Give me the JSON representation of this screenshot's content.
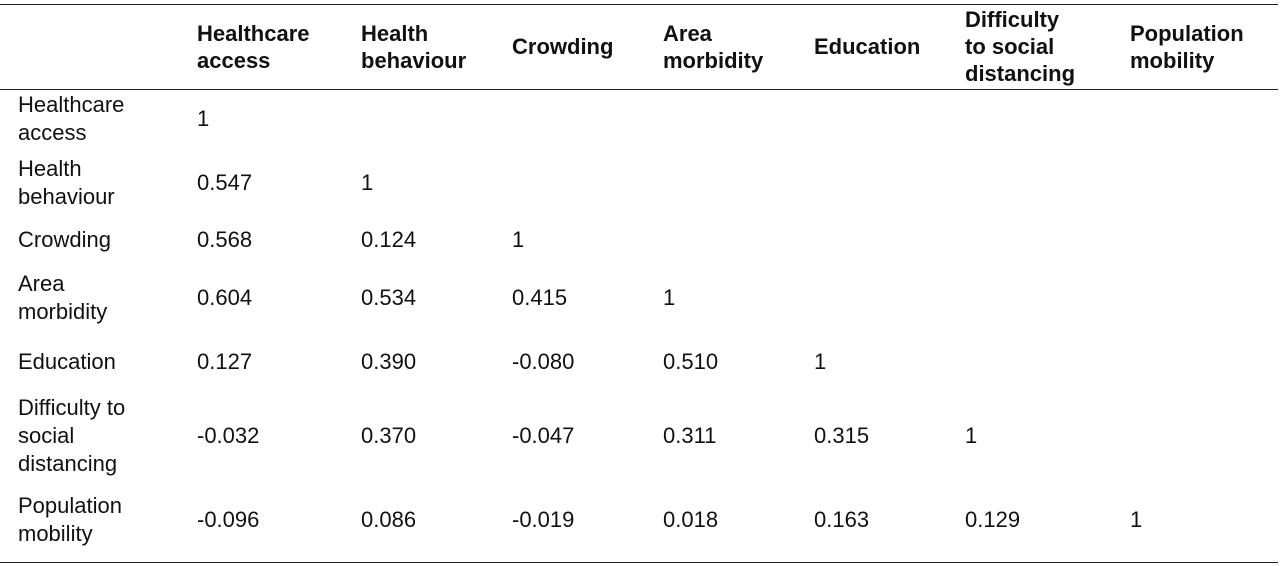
{
  "table": {
    "columns": [
      "",
      "Healthcare\naccess",
      "Health\nbehaviour",
      "Crowding",
      "Area\nmorbidity",
      "Education",
      "Difficulty\nto social\ndistancing",
      "Population\nmobility"
    ],
    "rows": [
      {
        "label": "Healthcare\naccess",
        "values": [
          "1",
          "",
          "",
          "",
          "",
          "",
          ""
        ]
      },
      {
        "label": "Health\nbehaviour",
        "values": [
          "0.547",
          "1",
          "",
          "",
          "",
          "",
          ""
        ]
      },
      {
        "label": "Crowding",
        "values": [
          "0.568",
          "0.124",
          "1",
          "",
          "",
          "",
          ""
        ]
      },
      {
        "label": "Area\nmorbidity",
        "values": [
          "0.604",
          "0.534",
          "0.415",
          "1",
          "",
          "",
          ""
        ]
      },
      {
        "label": "Education",
        "values": [
          "0.127",
          "0.390",
          "-0.080",
          "0.510",
          "1",
          "",
          ""
        ]
      },
      {
        "label": "Difficulty to\nsocial\ndistancing",
        "values": [
          "-0.032",
          "0.370",
          "-0.047",
          "0.311",
          "0.315",
          "1",
          ""
        ]
      },
      {
        "label": "Population\nmobility",
        "values": [
          "-0.096",
          "0.086",
          "-0.019",
          "0.018",
          "0.163",
          "0.129",
          "1"
        ]
      }
    ]
  }
}
